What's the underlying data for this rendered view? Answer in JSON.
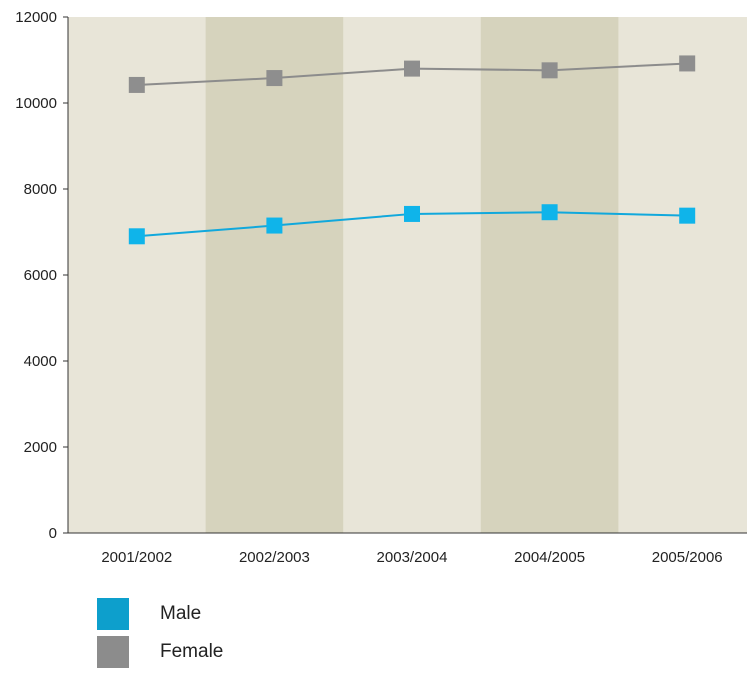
{
  "chart_data": {
    "type": "line",
    "categories": [
      "2001/2002",
      "2002/2003",
      "2003/2004",
      "2004/2005",
      "2005/2006"
    ],
    "series": [
      {
        "name": "Male",
        "values": [
          6900,
          7150,
          7420,
          7460,
          7380
        ],
        "color": "#11a8dc",
        "marker_color": "#0fb4ea",
        "marker": "square"
      },
      {
        "name": "Female",
        "values": [
          10420,
          10580,
          10800,
          10760,
          10920
        ],
        "color": "#8c8c8c",
        "marker_color": "#8e8e8e",
        "marker": "square"
      }
    ],
    "ylim": [
      0,
      12000
    ],
    "yticks": [
      0,
      2000,
      4000,
      6000,
      8000,
      10000,
      12000
    ],
    "ytick_labels": [
      "0",
      "2000",
      "4000",
      "6000",
      "8000",
      "10000",
      "12000"
    ],
    "title": "",
    "xlabel": "",
    "ylabel": "",
    "grid": false,
    "background_bands": {
      "light": "#e8e5d8",
      "dark": "#d6d3bd"
    },
    "legend_placement": "bottom-left"
  },
  "legend": {
    "male_label": "Male",
    "female_label": "Female",
    "male_color": "#0d9fcc",
    "female_color": "#8c8c8c"
  }
}
